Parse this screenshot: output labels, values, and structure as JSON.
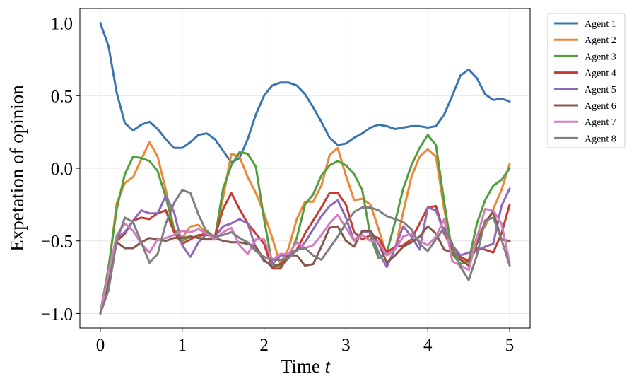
{
  "chart_data": {
    "type": "line",
    "title": "",
    "xlabel": "Time",
    "xlabel_var": "t",
    "ylabel": "Expetation of opinion",
    "xlim": [
      -0.25,
      5.25
    ],
    "ylim": [
      -1.1,
      1.1
    ],
    "xticks": [
      0,
      1,
      2,
      3,
      4,
      5
    ],
    "yticks": [
      1.0,
      0.5,
      0.0,
      -0.5,
      -1.0
    ],
    "ytick_labels": [
      "1.0",
      "0.5",
      "0.0",
      "−0.5",
      "−1.0"
    ],
    "xtick_labels": [
      "0",
      "1",
      "2",
      "3",
      "4",
      "5"
    ],
    "grid": true,
    "legend": "outside-top-right",
    "x": [
      0,
      0.1,
      0.2,
      0.3,
      0.4,
      0.5,
      0.6,
      0.7,
      0.8,
      0.9,
      1.0,
      1.1,
      1.2,
      1.3,
      1.4,
      1.5,
      1.6,
      1.7,
      1.8,
      1.9,
      2.0,
      2.1,
      2.2,
      2.3,
      2.4,
      2.5,
      2.6,
      2.7,
      2.8,
      2.9,
      3.0,
      3.1,
      3.2,
      3.3,
      3.4,
      3.5,
      3.6,
      3.7,
      3.8,
      3.9,
      4.0,
      4.1,
      4.2,
      4.3,
      4.4,
      4.5,
      4.6,
      4.7,
      4.8,
      4.9,
      5.0
    ],
    "series": [
      {
        "name": "Agent 1",
        "color": "#3b75af",
        "values": [
          1.0,
          0.84,
          0.52,
          0.31,
          0.26,
          0.3,
          0.32,
          0.27,
          0.2,
          0.14,
          0.14,
          0.18,
          0.23,
          0.24,
          0.2,
          0.12,
          0.04,
          0.07,
          0.2,
          0.37,
          0.5,
          0.57,
          0.59,
          0.59,
          0.57,
          0.51,
          0.42,
          0.32,
          0.21,
          0.16,
          0.17,
          0.21,
          0.24,
          0.28,
          0.3,
          0.29,
          0.27,
          0.28,
          0.29,
          0.29,
          0.28,
          0.29,
          0.37,
          0.5,
          0.64,
          0.68,
          0.62,
          0.51,
          0.47,
          0.48,
          0.46
        ]
      },
      {
        "name": "Agent 2",
        "color": "#ef8636",
        "values": [
          -1.0,
          -0.7,
          -0.24,
          -0.1,
          -0.06,
          0.06,
          0.18,
          0.08,
          -0.15,
          -0.42,
          -0.48,
          -0.4,
          -0.39,
          -0.45,
          -0.47,
          -0.2,
          0.1,
          0.08,
          -0.06,
          -0.17,
          -0.31,
          -0.48,
          -0.66,
          -0.55,
          -0.35,
          -0.23,
          -0.23,
          -0.12,
          0.09,
          0.14,
          -0.05,
          -0.22,
          -0.21,
          -0.25,
          -0.42,
          -0.6,
          -0.56,
          -0.3,
          -0.06,
          0.08,
          0.13,
          0.08,
          -0.28,
          -0.56,
          -0.62,
          -0.65,
          -0.47,
          -0.4,
          -0.28,
          -0.15,
          0.03
        ]
      },
      {
        "name": "Agent 3",
        "color": "#519e3e",
        "values": [
          -1.0,
          -0.68,
          -0.28,
          -0.04,
          0.08,
          0.07,
          0.05,
          -0.02,
          -0.2,
          -0.42,
          -0.5,
          -0.47,
          -0.48,
          -0.43,
          -0.48,
          -0.14,
          0.02,
          0.11,
          0.1,
          0.01,
          -0.35,
          -0.66,
          -0.67,
          -0.62,
          -0.48,
          -0.25,
          -0.18,
          -0.05,
          0.02,
          0.05,
          0.02,
          -0.04,
          -0.15,
          -0.47,
          -0.62,
          -0.58,
          -0.37,
          -0.14,
          0.02,
          0.14,
          0.23,
          0.16,
          -0.23,
          -0.59,
          -0.66,
          -0.64,
          -0.38,
          -0.22,
          -0.12,
          -0.08,
          -0.0
        ]
      },
      {
        "name": "Agent 4",
        "color": "#c53a32",
        "values": [
          -1.0,
          -0.78,
          -0.5,
          -0.45,
          -0.36,
          -0.34,
          -0.35,
          -0.31,
          -0.29,
          -0.44,
          -0.52,
          -0.49,
          -0.46,
          -0.46,
          -0.47,
          -0.28,
          -0.17,
          -0.28,
          -0.38,
          -0.45,
          -0.52,
          -0.69,
          -0.69,
          -0.6,
          -0.56,
          -0.45,
          -0.36,
          -0.27,
          -0.17,
          -0.17,
          -0.25,
          -0.44,
          -0.49,
          -0.46,
          -0.48,
          -0.58,
          -0.54,
          -0.53,
          -0.49,
          -0.38,
          -0.27,
          -0.26,
          -0.45,
          -0.55,
          -0.61,
          -0.64,
          -0.55,
          -0.56,
          -0.58,
          -0.45,
          -0.25
        ]
      },
      {
        "name": "Agent 5",
        "color": "#8d69b8",
        "values": [
          -1.0,
          -0.72,
          -0.48,
          -0.44,
          -0.36,
          -0.29,
          -0.31,
          -0.31,
          -0.19,
          -0.3,
          -0.53,
          -0.61,
          -0.51,
          -0.45,
          -0.47,
          -0.4,
          -0.38,
          -0.35,
          -0.38,
          -0.55,
          -0.64,
          -0.66,
          -0.6,
          -0.6,
          -0.57,
          -0.51,
          -0.42,
          -0.33,
          -0.26,
          -0.22,
          -0.34,
          -0.5,
          -0.44,
          -0.44,
          -0.58,
          -0.68,
          -0.55,
          -0.4,
          -0.47,
          -0.56,
          -0.27,
          -0.29,
          -0.44,
          -0.53,
          -0.6,
          -0.58,
          -0.57,
          -0.54,
          -0.52,
          -0.26,
          -0.14
        ]
      },
      {
        "name": "Agent 6",
        "color": "#84584d",
        "values": [
          -1.0,
          -0.78,
          -0.51,
          -0.55,
          -0.55,
          -0.51,
          -0.48,
          -0.49,
          -0.5,
          -0.48,
          -0.48,
          -0.47,
          -0.48,
          -0.49,
          -0.48,
          -0.5,
          -0.51,
          -0.51,
          -0.52,
          -0.54,
          -0.63,
          -0.68,
          -0.66,
          -0.6,
          -0.6,
          -0.67,
          -0.66,
          -0.54,
          -0.41,
          -0.4,
          -0.5,
          -0.54,
          -0.43,
          -0.43,
          -0.52,
          -0.65,
          -0.6,
          -0.54,
          -0.51,
          -0.47,
          -0.4,
          -0.45,
          -0.56,
          -0.58,
          -0.63,
          -0.67,
          -0.52,
          -0.37,
          -0.3,
          -0.49,
          -0.5
        ]
      },
      {
        "name": "Agent 7",
        "color": "#d57ebf",
        "values": [
          -1.0,
          -0.72,
          -0.46,
          -0.38,
          -0.43,
          -0.52,
          -0.58,
          -0.49,
          -0.48,
          -0.46,
          -0.43,
          -0.44,
          -0.42,
          -0.45,
          -0.49,
          -0.44,
          -0.41,
          -0.53,
          -0.59,
          -0.49,
          -0.49,
          -0.63,
          -0.59,
          -0.59,
          -0.51,
          -0.55,
          -0.53,
          -0.46,
          -0.38,
          -0.32,
          -0.41,
          -0.5,
          -0.46,
          -0.5,
          -0.51,
          -0.6,
          -0.56,
          -0.47,
          -0.45,
          -0.5,
          -0.53,
          -0.47,
          -0.35,
          -0.64,
          -0.67,
          -0.7,
          -0.48,
          -0.28,
          -0.29,
          -0.38,
          -0.65
        ]
      },
      {
        "name": "Agent 8",
        "color": "#7f7f7f",
        "values": [
          -1.0,
          -0.84,
          -0.5,
          -0.34,
          -0.37,
          -0.51,
          -0.65,
          -0.59,
          -0.38,
          -0.24,
          -0.15,
          -0.17,
          -0.32,
          -0.44,
          -0.47,
          -0.46,
          -0.44,
          -0.48,
          -0.51,
          -0.57,
          -0.61,
          -0.63,
          -0.63,
          -0.62,
          -0.56,
          -0.55,
          -0.6,
          -0.63,
          -0.55,
          -0.47,
          -0.38,
          -0.3,
          -0.27,
          -0.27,
          -0.29,
          -0.33,
          -0.35,
          -0.37,
          -0.42,
          -0.52,
          -0.57,
          -0.49,
          -0.41,
          -0.52,
          -0.68,
          -0.77,
          -0.6,
          -0.36,
          -0.34,
          -0.49,
          -0.67
        ]
      }
    ]
  }
}
